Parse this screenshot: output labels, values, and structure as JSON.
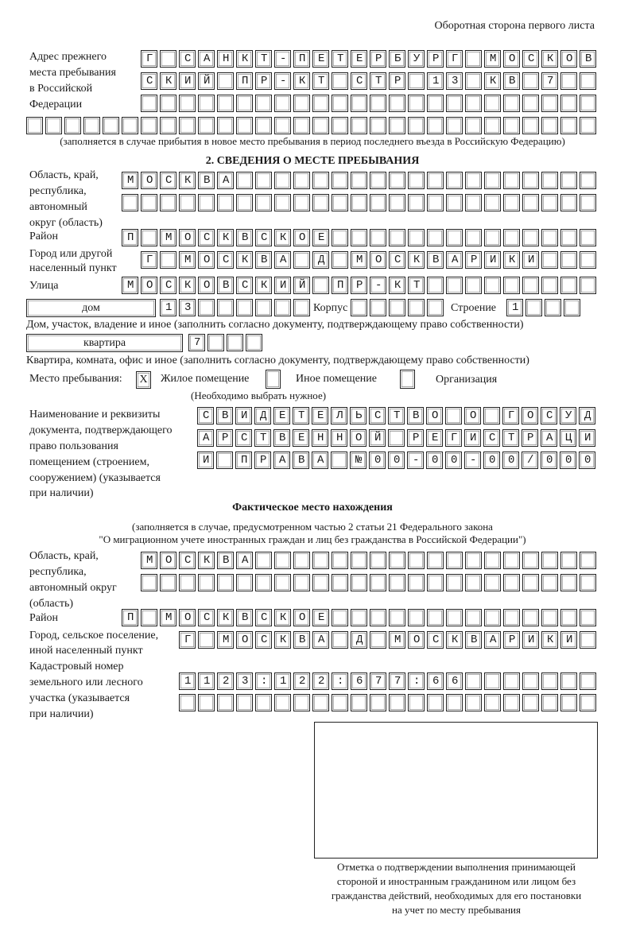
{
  "header": {
    "side_note": "Оборотная сторона первого листа"
  },
  "previous_address": {
    "label": [
      "Адрес прежнего",
      "места пребывания",
      "в Российской",
      "Федерации"
    ],
    "rows": [
      "Г САНКТ-ПЕТЕРБУРГ МОСКОВ",
      "СКИЙ ПР-КТ СТР 13 КВ 7",
      "",
      ""
    ],
    "note": "(заполняется в случае прибытия в новое место пребывания в период последнего въезда в Российскую Федерацию)"
  },
  "section2": {
    "title": "2. СВЕДЕНИЯ О МЕСТЕ ПРЕБЫВАНИЯ",
    "region_label": [
      "Область, край,",
      "республика,",
      "автономный",
      "округ (область)"
    ],
    "region_rows": [
      "МОСКВА",
      ""
    ],
    "district_label": "Район",
    "district": "П МОСКВСКОЕ",
    "city_label": [
      "Город или другой",
      "населенный пункт"
    ],
    "city": "Г МОСКВА Д МОСКВАРИКИ",
    "street_label": "Улица",
    "street": "МОСКОВСКИЙ ПР-КТ",
    "house_type": "дом",
    "house_number": "13",
    "korpus_label": "Корпус",
    "korpus": "",
    "building_label": "Строение",
    "building": "1",
    "house_note": "Дом, участок, владение и иное (заполнить согласно документу, подтверждающему право собственности)",
    "apartment_type": "квартира",
    "apartment_number": "7",
    "apartment_note": "Квартира, комната, офис и иное (заполнить согласно документу, подтверждающему право собственности)",
    "place_label": "Место пребывания:",
    "place_options": [
      {
        "label": "Жилое помещение",
        "mark": "X",
        "checked": true
      },
      {
        "label": "Иное помещение",
        "mark": "",
        "checked": false
      },
      {
        "label": "Организация",
        "mark": "",
        "checked": false
      }
    ],
    "place_hint": "(Необходимо выбрать нужное)",
    "document_label": [
      "Наименование и реквизиты",
      "документа, подтверждающего",
      "право пользования",
      "помещением (строением,",
      "сооружением) (указывается",
      "при наличии)"
    ],
    "document_rows": [
      "СВИДЕТЕЛЬСТВО О ГОСУД",
      "АРСТВЕННОЙ РЕГИСТРАЦИ",
      "И ПРАВА №00-00-00/000"
    ]
  },
  "actual_location": {
    "title": "Фактическое место нахождения",
    "note": [
      "(заполняется в случае, предусмотренном частью 2 статьи 21 Федерального закона",
      "\"О миграционном учете иностранных граждан и лиц без гражданства в Российской Федерации\")"
    ],
    "region_label": [
      "Область, край,",
      "республика,",
      "автономный округ",
      "(область)"
    ],
    "region_rows": [
      "МОСКВА",
      ""
    ],
    "district_label": "Район",
    "district": "П МОСКВСКОЕ",
    "city_label": [
      "Город, сельское поселение,",
      "иной населенный пункт"
    ],
    "city": "Г МОСКВА Д МОСКВАРИКИ",
    "cadastral_label": [
      "Кадастровый номер",
      "земельного или лесного",
      "участка (указывается",
      "при наличии)"
    ],
    "cadastral_rows": [
      "1123:122:677:66",
      ""
    ]
  },
  "stamp": {
    "caption": [
      "Отметка о подтверждении выполнения принимающей",
      "стороной и иностранным гражданином или лицом без",
      "гражданства действий, необходимых для его постановки",
      "на учет по месту пребывания"
    ]
  }
}
